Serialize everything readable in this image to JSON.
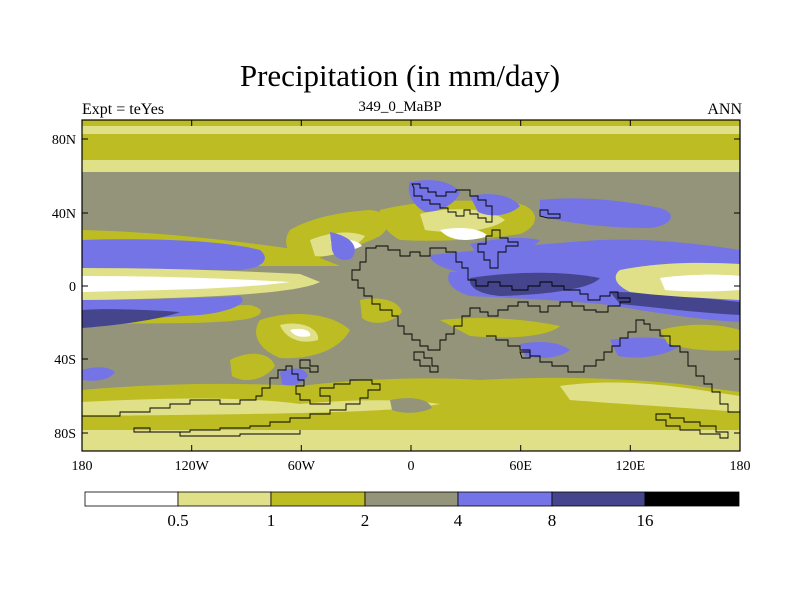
{
  "header": {
    "title": "Precipitation (in mm/day)",
    "left_label": "Expt = teYes",
    "center_label": "349_0_MaBP",
    "right_label": "ANN"
  },
  "map": {
    "lat_ticks": [
      "80N",
      "40N",
      "0",
      "40S",
      "80S"
    ],
    "lon_ticks": [
      "180",
      "120W",
      "60W",
      "0",
      "60E",
      "120E",
      "180"
    ]
  },
  "colorbar": {
    "levels": [
      "0.5",
      "1",
      "2",
      "4",
      "8",
      "16"
    ],
    "colors": [
      "#ffffff",
      "#e0e089",
      "#bdbd23",
      "#94947a",
      "#7474e6",
      "#45458e",
      "#000000"
    ]
  }
}
